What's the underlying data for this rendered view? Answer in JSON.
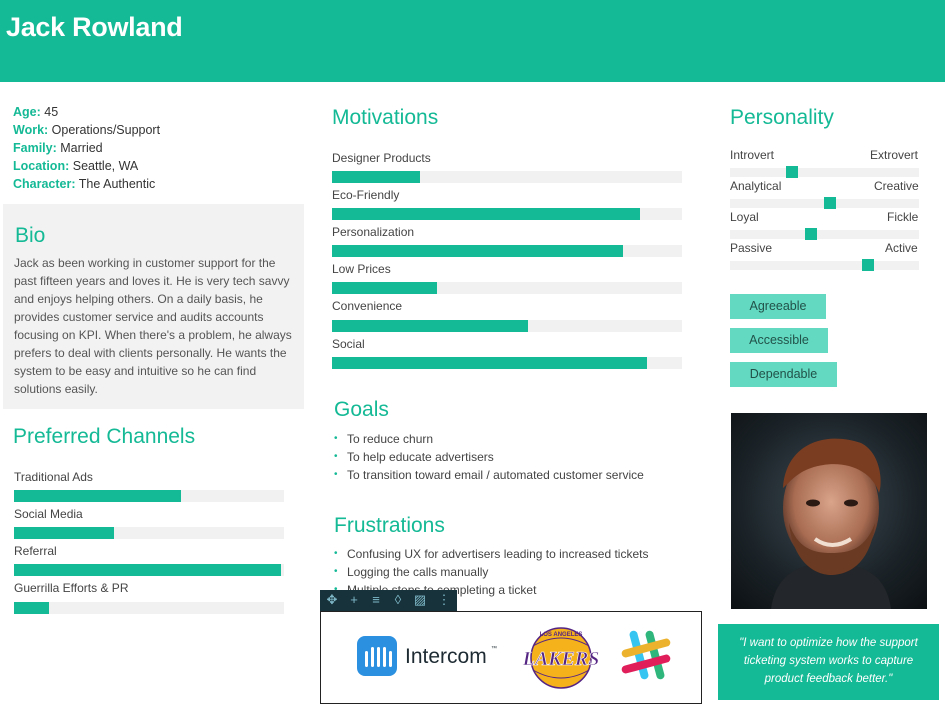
{
  "persona": {
    "name": "Jack Rowland"
  },
  "demographics": [
    {
      "key": "Age:",
      "value": "45"
    },
    {
      "key": "Work:",
      "value": "Operations/Support"
    },
    {
      "key": "Family:",
      "value": "Married"
    },
    {
      "key": "Location:",
      "value": "Seattle, WA"
    },
    {
      "key": "Character:",
      "value": "The Authentic"
    }
  ],
  "bio": {
    "title": "Bio",
    "text": "Jack as been working in customer support for the past fifteen years and loves it. He is very tech savvy and enjoys helping others. On a daily basis, he provides customer service and audits accounts focusing on KPI. When there's a problem, he always prefers to deal with clients personally. He wants the system to be easy and intuitive so he can find solutions easily."
  },
  "channels": {
    "title": "Preferred Channels",
    "items": [
      {
        "label": "Traditional Ads",
        "level": 0.62
      },
      {
        "label": "Social Media",
        "level": 0.37
      },
      {
        "label": "Referral",
        "level": 0.99
      },
      {
        "label": "Guerrilla Efforts & PR",
        "level": 0.13
      }
    ]
  },
  "motivations": {
    "title": "Motivations",
    "items": [
      {
        "label": "Designer Products",
        "level": 0.25
      },
      {
        "label": "Eco-Friendly",
        "level": 0.88
      },
      {
        "label": "Personalization",
        "level": 0.83
      },
      {
        "label": "Low Prices",
        "level": 0.3
      },
      {
        "label": "Convenience",
        "level": 0.56
      },
      {
        "label": "Social",
        "level": 0.9
      }
    ]
  },
  "goals": {
    "title": "Goals",
    "items": [
      "To reduce churn",
      "To help educate advertisers",
      "To transition toward email / automated customer service"
    ]
  },
  "frustrations": {
    "title": "Frustrations",
    "items": [
      "Confusing UX for advertisers leading to increased tickets",
      "Logging the calls manually",
      "Multiple steps to completing a ticket"
    ]
  },
  "personality": {
    "title": "Personality",
    "traits": [
      {
        "left": "Introvert",
        "right": "Extrovert",
        "level": 0.33
      },
      {
        "left": "Analytical",
        "right": "Creative",
        "level": 0.53
      },
      {
        "left": "Loyal",
        "right": "Fickle",
        "level": 0.43
      },
      {
        "left": "Passive",
        "right": "Active",
        "level": 0.73
      }
    ],
    "tags": [
      "Agreeable",
      "Accessible",
      "Dependable"
    ]
  },
  "quote": "\"I want to optimize how the support ticketing system works to capture product feedback better.\"",
  "brands": {
    "intercom": "Intercom",
    "intercom_tm": "™",
    "lakers": "LAKERS",
    "lakers_arc": "LOS ANGELES"
  },
  "toolbar": {
    "icons": [
      "move-icon",
      "add-icon",
      "align-icon",
      "color-icon",
      "image-icon",
      "more-icon"
    ]
  },
  "colors": {
    "accent": "#14b995",
    "tag": "#62d9c0",
    "track": "#f1f1f1"
  }
}
